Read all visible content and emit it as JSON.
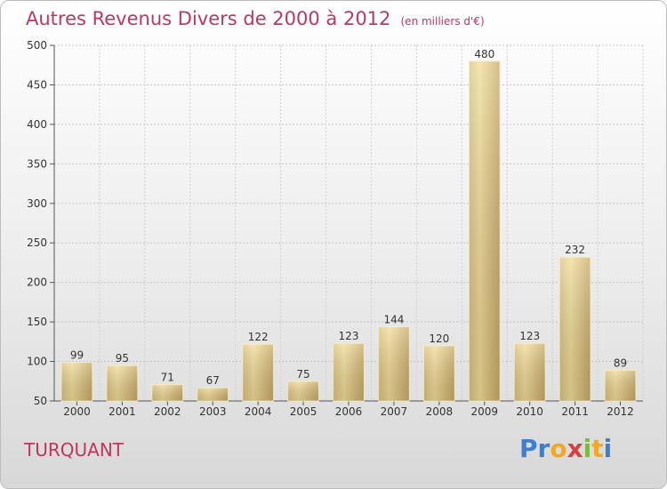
{
  "title": {
    "main": "Autres Revenus Divers de 2000 à 2012",
    "subtitle": "(en milliers d'€)"
  },
  "commune": "TURQUANT",
  "logo": {
    "text": "Proxiti",
    "letters": [
      "P",
      "r",
      "o",
      "x",
      "i",
      "t",
      "i"
    ],
    "colors": [
      "#3b7fd0",
      "#3b7fd0",
      "#f5a623",
      "#d93f3f",
      "#7dbb3c",
      "#f5a623",
      "#3b7fd0"
    ]
  },
  "colors": {
    "title": "#c0365e",
    "bar_light": "#f4df9c",
    "bar_dark": "#c9aa62"
  },
  "chart_data": {
    "type": "bar",
    "title": "Autres Revenus Divers de 2000 à 2012",
    "subtitle": "(en milliers d'€)",
    "categories": [
      "2000",
      "2001",
      "2002",
      "2003",
      "2004",
      "2005",
      "2006",
      "2007",
      "2008",
      "2009",
      "2010",
      "2011",
      "2012"
    ],
    "values": [
      99,
      95,
      71,
      67,
      122,
      75,
      123,
      144,
      120,
      480,
      123,
      232,
      89
    ],
    "ylim": [
      50,
      500
    ],
    "yticks": [
      50,
      100,
      150,
      200,
      250,
      300,
      350,
      400,
      450,
      500
    ],
    "grid": true,
    "data_labels": true
  }
}
